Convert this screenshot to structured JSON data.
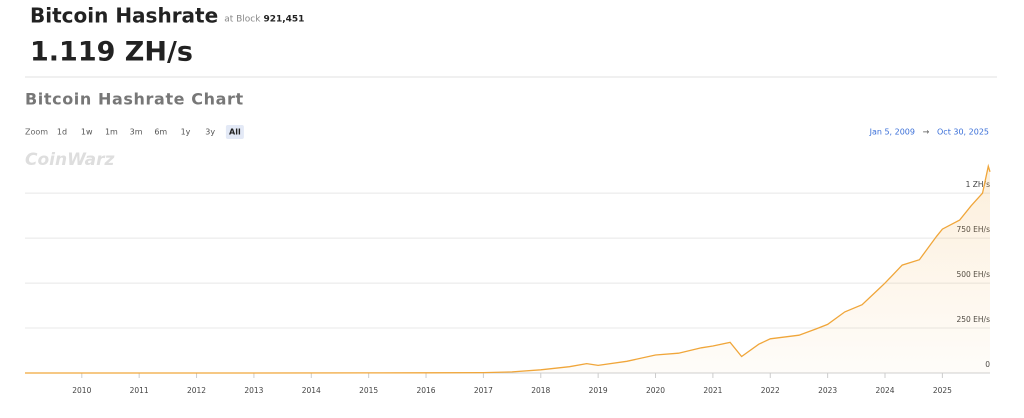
{
  "header": {
    "title": "Bitcoin Hashrate",
    "block_label": "at Block",
    "block_number": "921,451",
    "value": "1.119 ZH/s"
  },
  "chart_data": {
    "type": "line",
    "title": "Bitcoin Hashrate Chart",
    "watermark": "CoinWarz",
    "zoom_label": "Zoom",
    "zoom_options": [
      "1d",
      "1w",
      "1m",
      "3m",
      "6m",
      "1y",
      "3y",
      "All"
    ],
    "active_zoom": "All",
    "range_start": "Jan 5, 2009",
    "range_arrow": "→",
    "range_end": "Oct 30, 2025",
    "color": "#f0a63a",
    "area": true,
    "grid": true,
    "x": [
      2009.01,
      2012.0,
      2015.0,
      2016.0,
      2017.0,
      2017.5,
      2018.0,
      2018.5,
      2018.8,
      2019.0,
      2019.5,
      2020.0,
      2020.4,
      2020.8,
      2021.0,
      2021.3,
      2021.5,
      2021.8,
      2022.0,
      2022.5,
      2022.8,
      2023.0,
      2023.3,
      2023.6,
      2023.9,
      2024.0,
      2024.3,
      2024.6,
      2024.9,
      2025.0,
      2025.3,
      2025.5,
      2025.7,
      2025.8,
      2025.83
    ],
    "values": [
      0,
      0,
      0.4,
      1,
      2.5,
      6,
      18,
      35,
      52,
      42,
      65,
      100,
      110,
      140,
      150,
      170,
      92,
      160,
      190,
      210,
      245,
      270,
      340,
      380,
      470,
      500,
      600,
      630,
      760,
      800,
      850,
      930,
      1000,
      1150,
      1119
    ],
    "xlim": [
      2009.01,
      2025.83
    ],
    "ylim": [
      0,
      1240
    ],
    "xticks": [
      2010,
      2011,
      2012,
      2013,
      2014,
      2015,
      2016,
      2017,
      2018,
      2019,
      2020,
      2021,
      2022,
      2023,
      2024,
      2025
    ],
    "yticks": [
      0,
      {
        "value": 250,
        "label": "250 EH/s"
      },
      {
        "value": 500,
        "label": "500 EH/s"
      },
      {
        "value": 750,
        "label": "750 EH/s"
      },
      {
        "value": 1000,
        "label": "1 ZH/s"
      }
    ]
  }
}
